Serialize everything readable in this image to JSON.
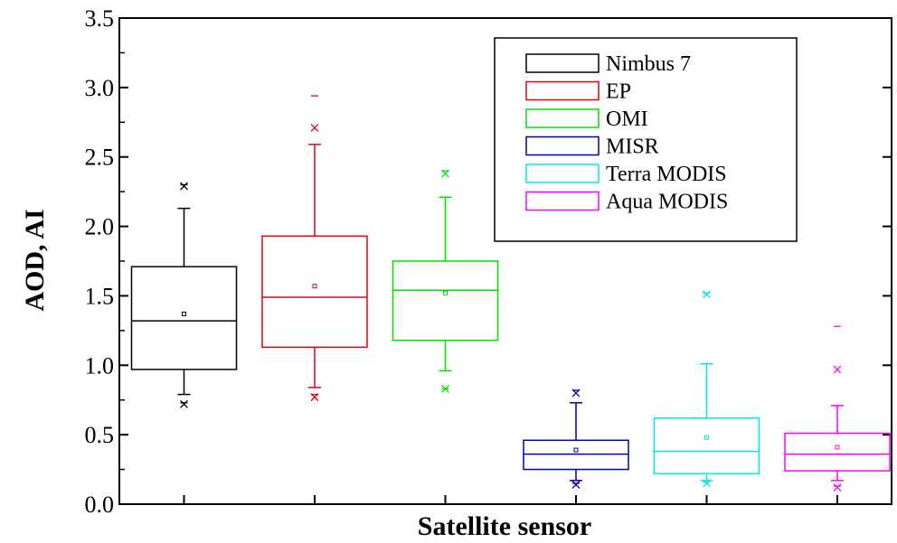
{
  "chart_data": {
    "type": "box",
    "title": "",
    "xlabel": "Satellite sensor",
    "ylabel": "AOD, AI",
    "ylim": [
      0.0,
      3.5
    ],
    "yticks": [
      "0.0",
      "0.5",
      "1.0",
      "1.5",
      "2.0",
      "2.5",
      "3.0",
      "3.5"
    ],
    "yticks_values": [
      0.0,
      0.5,
      1.0,
      1.5,
      2.0,
      2.5,
      3.0,
      3.5
    ],
    "legend_position": "top-right",
    "grid": false,
    "series": [
      {
        "name": "Nimbus 7",
        "color": "#000000",
        "q1": 0.97,
        "median": 1.32,
        "q3": 1.71,
        "mean": 1.37,
        "whisker_low": 0.79,
        "whisker_high": 2.13,
        "p1": 0.72,
        "p99": 2.29,
        "min": 0.73,
        "max": 2.3
      },
      {
        "name": "EP",
        "color": "#e8000b",
        "q1": 1.13,
        "median": 1.49,
        "q3": 1.93,
        "mean": 1.57,
        "whisker_low": 0.84,
        "whisker_high": 2.59,
        "p1": 0.77,
        "p99": 2.71,
        "min": 0.79,
        "max": 2.94
      },
      {
        "name": "OMI",
        "color": "#00e000",
        "q1": 1.18,
        "median": 1.54,
        "q3": 1.75,
        "mean": 1.52,
        "whisker_low": 0.96,
        "whisker_high": 2.21,
        "p1": 0.83,
        "p99": 2.38,
        "min": 0.83,
        "max": 2.4
      },
      {
        "name": "MISR",
        "color": "#0000b0",
        "q1": 0.25,
        "median": 0.36,
        "q3": 0.46,
        "mean": 0.39,
        "whisker_low": 0.17,
        "whisker_high": 0.73,
        "p1": 0.14,
        "p99": 0.8,
        "min": 0.15,
        "max": 0.82
      },
      {
        "name": "Terra MODIS",
        "color": "#00e8e8",
        "q1": 0.22,
        "median": 0.38,
        "q3": 0.62,
        "mean": 0.48,
        "whisker_low": 0.17,
        "whisker_high": 1.01,
        "p1": 0.15,
        "p99": 1.51,
        "min": 0.16,
        "max": 1.52
      },
      {
        "name": "Aqua MODIS",
        "color": "#ff00ff",
        "q1": 0.24,
        "median": 0.36,
        "q3": 0.51,
        "mean": 0.41,
        "whisker_low": 0.17,
        "whisker_high": 0.71,
        "p1": 0.12,
        "p99": 0.97,
        "min": 0.13,
        "max": 1.28
      }
    ]
  }
}
